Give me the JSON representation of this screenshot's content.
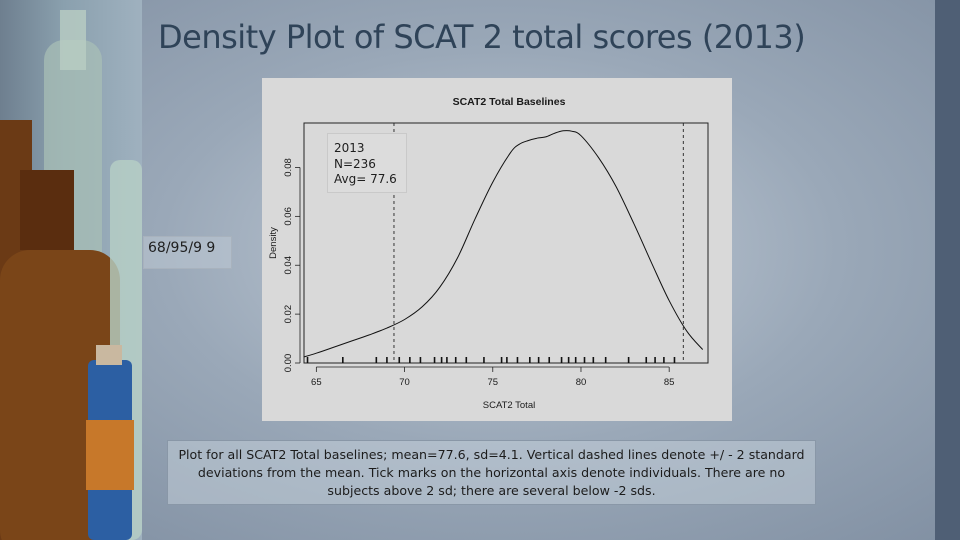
{
  "slide": {
    "title": "Density Plot of SCAT 2 total scores (2013)",
    "sd_note": "68/95/9 9",
    "caption": "Plot for all SCAT2 Total baselines; mean=77.6, sd=4.1. Vertical dashed lines denote +/ - 2 standard deviations from the mean. Tick marks on the horizontal axis denote individuals. There are no subjects above 2 sd; there are several below -2 sds."
  },
  "legend": {
    "line1": "2013",
    "line2": "N=236",
    "line3": "Avg= 77.6"
  },
  "colors": {
    "title": "#2f4358",
    "right_bar": "#4f5f75",
    "plot_background": "#d9d9d9"
  },
  "chart_data": {
    "type": "line",
    "title": "SCAT2 Total Baselines",
    "xlabel": "SCAT2 Total",
    "ylabel": "Density",
    "xlim": [
      64.3,
      87.2
    ],
    "ylim": [
      0,
      0.0982
    ],
    "x_ticks": [
      65,
      70,
      75,
      80,
      85
    ],
    "y_ticks": [
      0.0,
      0.02,
      0.04,
      0.06,
      0.08
    ],
    "y_tick_labels": [
      "0.00",
      "0.02",
      "0.04",
      "0.06",
      "0.08"
    ],
    "density_curve": {
      "x": [
        64.3,
        65,
        66,
        67,
        68,
        69,
        70,
        71,
        72,
        73,
        74,
        75,
        76,
        76.5,
        77,
        77.5,
        78,
        78.5,
        79,
        79.5,
        80,
        81,
        82,
        83,
        84,
        85,
        86,
        86.9
      ],
      "y": [
        0.0025,
        0.004,
        0.0065,
        0.009,
        0.0115,
        0.0143,
        0.0178,
        0.023,
        0.031,
        0.043,
        0.059,
        0.074,
        0.086,
        0.0895,
        0.091,
        0.092,
        0.0925,
        0.094,
        0.095,
        0.0948,
        0.093,
        0.084,
        0.072,
        0.057,
        0.041,
        0.0255,
        0.013,
        0.0055
      ]
    },
    "reference_lines": [
      {
        "x": 69.4,
        "style": "dashed",
        "meaning": "-2 sd"
      },
      {
        "x": 85.8,
        "style": "dashed",
        "meaning": "+2 sd"
      }
    ],
    "rug_x": [
      64.5,
      66.5,
      68.4,
      69,
      69.7,
      70.3,
      70.9,
      71.7,
      72.1,
      72.4,
      72.9,
      73.5,
      74.5,
      75.5,
      75.8,
      76.4,
      77.1,
      77.6,
      78.2,
      78.9,
      79.3,
      79.7,
      80.2,
      80.7,
      81.4,
      82.7,
      83.7,
      84.2,
      84.7,
      85.3
    ],
    "grid": false,
    "legend_placement": "top-left"
  }
}
